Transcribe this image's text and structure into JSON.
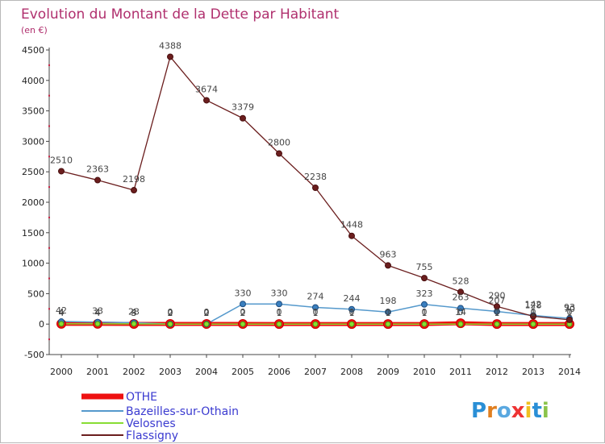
{
  "chart_data": {
    "type": "line",
    "title": "Evolution du Montant de la Dette par Habitant",
    "subtitle": "(en €)",
    "xlabel": "",
    "ylabel": "",
    "ylim": [
      -500,
      4500
    ],
    "yticks": [
      -500,
      0,
      500,
      1000,
      1500,
      2000,
      2500,
      3000,
      3500,
      4000,
      4500
    ],
    "categories": [
      "2000",
      "2001",
      "2002",
      "2003",
      "2004",
      "2005",
      "2006",
      "2007",
      "2008",
      "2009",
      "2010",
      "2011",
      "2012",
      "2013",
      "2014"
    ],
    "series": [
      {
        "name": "OTHE",
        "color": "#ee1111",
        "values": [
          4,
          4,
          3,
          2,
          2,
          2,
          1,
          1,
          1,
          1,
          1,
          14,
          1,
          1,
          1
        ],
        "labels": [
          "4",
          "4",
          "3",
          "2",
          "2",
          "2",
          "1",
          "1",
          "1",
          "1",
          "1",
          "14",
          "1",
          "1",
          "1"
        ]
      },
      {
        "name": "Bazeilles-sur-Othain",
        "color": "#5599cc",
        "values": [
          42,
          33,
          23,
          0,
          0,
          330,
          330,
          274,
          244,
          198,
          323,
          263,
          207,
          142,
          93
        ],
        "labels": [
          "42",
          "33",
          "23",
          "0",
          "0",
          "330",
          "330",
          "274",
          "244",
          "198",
          "323",
          "263",
          "207",
          "142",
          "93"
        ]
      },
      {
        "name": "Velosnes",
        "color": "#88dd33",
        "values": [
          4,
          4,
          4,
          0,
          0,
          0,
          0,
          0,
          0,
          0,
          0,
          0,
          0,
          0,
          0
        ],
        "labels": [
          "4",
          "4",
          "4",
          "0",
          "0",
          "0",
          "0",
          "0",
          "0",
          "0",
          "0",
          "0",
          "0",
          "0",
          "0"
        ]
      },
      {
        "name": "Flassigny",
        "color": "#6b1e1e",
        "values": [
          2510,
          2363,
          2198,
          4388,
          3674,
          3379,
          2800,
          2238,
          1448,
          963,
          755,
          528,
          290,
          128,
          70
        ],
        "labels": [
          "2510",
          "2363",
          "2198",
          "4388",
          "3674",
          "3379",
          "2800",
          "2238",
          "1448",
          "963",
          "755",
          "528",
          "290",
          "128",
          "70"
        ]
      }
    ],
    "grid": false,
    "legend_position": "bottom-left"
  },
  "brand": {
    "text": "Proxiti",
    "letters": [
      "P",
      "r",
      "o",
      "x",
      "i",
      "t",
      "i"
    ],
    "colors": [
      "#2a8fd6",
      "#e07f20",
      "#5aa8e0",
      "#ee3333",
      "#f0c020",
      "#2a8fd6",
      "#8bc34a"
    ]
  }
}
